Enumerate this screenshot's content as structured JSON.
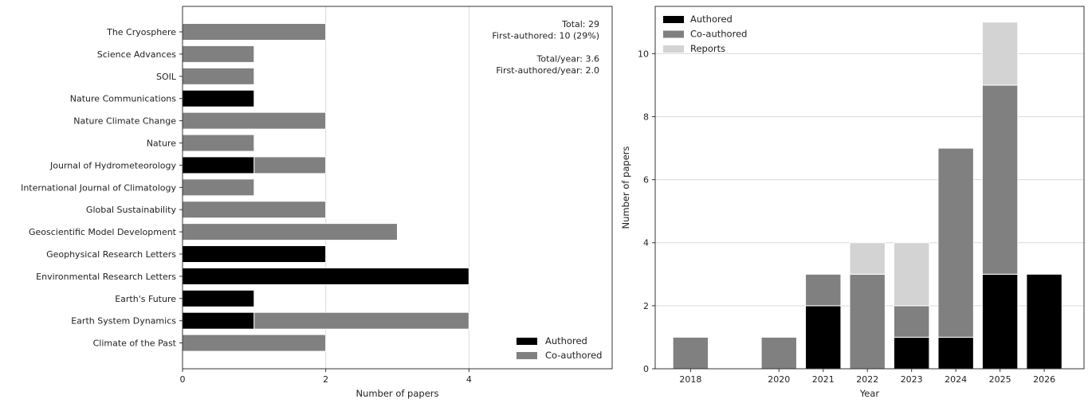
{
  "colors": {
    "authored": "#000000",
    "coauthored": "#808080",
    "reports": "#d3d3d3",
    "grid": "#d9d9d9",
    "axis": "#333333"
  },
  "chart_data": [
    {
      "type": "bar",
      "orientation": "horizontal",
      "stacked": true,
      "title": "",
      "xlabel": "Number of papers",
      "ylabel": "",
      "xlim": [
        0,
        6
      ],
      "xticks": [
        0,
        2,
        4
      ],
      "grid": "vertical",
      "legend_position": "bottom-right",
      "categories": [
        "The Cryosphere",
        "Science Advances",
        "SOIL",
        "Nature Communications",
        "Nature Climate Change",
        "Nature",
        "Journal of Hydrometeorology",
        "International Journal of Climatology",
        "Global Sustainability",
        "Geoscientific Model Development",
        "Geophysical Research Letters",
        "Environmental Research Letters",
        "Earth's Future",
        "Earth System Dynamics",
        "Climate of the Past"
      ],
      "series": [
        {
          "name": "Authored",
          "color_key": "authored",
          "values": [
            0,
            0,
            0,
            1,
            0,
            0,
            1,
            0,
            0,
            0,
            2,
            4,
            1,
            1,
            0
          ]
        },
        {
          "name": "Co-authored",
          "color_key": "coauthored",
          "values": [
            2,
            1,
            1,
            0,
            2,
            1,
            1,
            1,
            2,
            3,
            0,
            0,
            0,
            3,
            2
          ]
        }
      ],
      "annotation_lines": [
        "Total: 29",
        "First-authored: 10 (29%)",
        "",
        "Total/year: 3.6",
        "First-authored/year: 2.0"
      ]
    },
    {
      "type": "bar",
      "orientation": "vertical",
      "stacked": true,
      "title": "",
      "xlabel": "Year",
      "ylabel": "Number of papers",
      "ylim": [
        0,
        11.5
      ],
      "yticks": [
        0,
        2,
        4,
        6,
        8,
        10
      ],
      "grid": "horizontal",
      "legend_position": "top-left",
      "categories": [
        "2018",
        "2020",
        "2021",
        "2022",
        "2023",
        "2024",
        "2025",
        "2026"
      ],
      "x": [
        2018,
        2020,
        2021,
        2022,
        2023,
        2024,
        2025,
        2026
      ],
      "xlim": [
        2017.2,
        2026.9
      ],
      "series": [
        {
          "name": "Authored",
          "color_key": "authored",
          "values": [
            0,
            0,
            2,
            0,
            1,
            1,
            3,
            3
          ]
        },
        {
          "name": "Co-authored",
          "color_key": "coauthored",
          "values": [
            1,
            1,
            1,
            3,
            1,
            6,
            6,
            0
          ]
        },
        {
          "name": "Reports",
          "color_key": "reports",
          "values": [
            0,
            0,
            0,
            1,
            2,
            0,
            2,
            0
          ]
        }
      ]
    }
  ]
}
